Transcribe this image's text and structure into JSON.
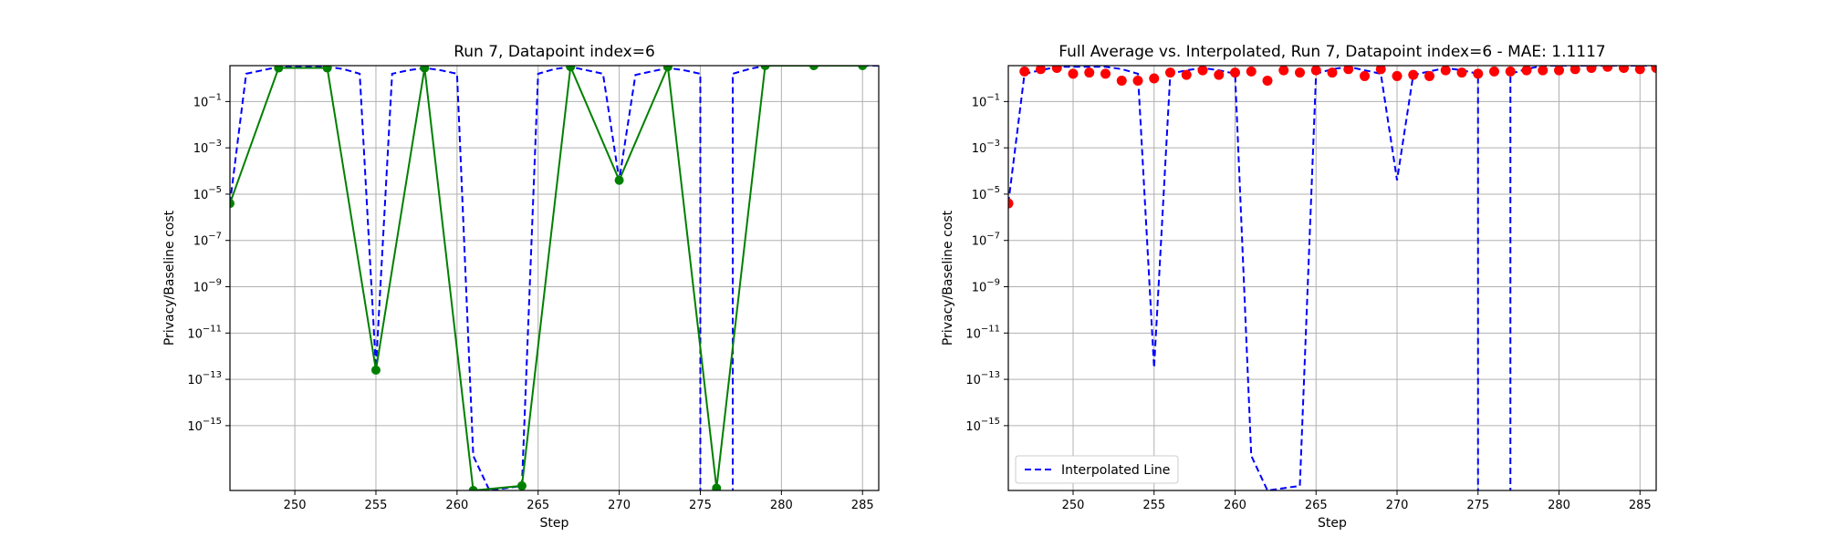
{
  "chart_data": [
    {
      "type": "line",
      "title": "Run 7, Datapoint index=6",
      "xlabel": "Step",
      "ylabel": "Privacy/Baseline cost",
      "xlim": [
        246,
        286
      ],
      "ylog_exponent_range": [
        -17.8,
        0.55
      ],
      "yscale": "log",
      "grid": true,
      "x_ticks": [
        "250",
        "255",
        "260",
        "265",
        "270",
        "275",
        "280",
        "285"
      ],
      "y_tick_exponents": [
        -1,
        -3,
        -5,
        -7,
        -9,
        -11,
        -13,
        -15
      ],
      "series": [
        {
          "style": "dashed",
          "color": "#0000ff",
          "points": [
            [
              246,
              -5.4
            ],
            [
              247,
              0.2
            ],
            [
              248,
              0.35
            ],
            [
              249,
              0.5
            ],
            [
              250,
              0.5
            ],
            [
              251,
              0.5
            ],
            [
              252,
              0.5
            ],
            [
              253,
              0.4
            ],
            [
              254,
              0.2
            ],
            [
              255,
              -12.5
            ],
            [
              256,
              0.2
            ],
            [
              257,
              0.35
            ],
            [
              258,
              0.45
            ],
            [
              259,
              0.35
            ],
            [
              260,
              0.2
            ],
            [
              261,
              -16.3
            ],
            [
              262,
              -17.8
            ],
            [
              263,
              -17.7
            ],
            [
              264,
              -17.6
            ],
            [
              265,
              0.2
            ],
            [
              266,
              0.4
            ],
            [
              267,
              0.5
            ],
            [
              268,
              0.35
            ],
            [
              269,
              0.2
            ],
            [
              270,
              -4.4
            ],
            [
              271,
              0.15
            ],
            [
              272,
              0.3
            ],
            [
              273,
              0.45
            ],
            [
              274,
              0.35
            ],
            [
              275,
              0.2
            ],
            [
              275,
              -18
            ],
            [
              277,
              -18
            ],
            [
              277,
              0.2
            ],
            [
              278,
              0.4
            ],
            [
              279,
              0.55
            ],
            [
              280,
              0.55
            ],
            [
              281,
              0.55
            ],
            [
              282,
              0.55
            ],
            [
              283,
              0.55
            ],
            [
              284,
              0.55
            ],
            [
              285,
              0.55
            ],
            [
              286,
              0.55
            ]
          ]
        },
        {
          "style": "solid-markers",
          "color": "#008000",
          "points": [
            [
              246,
              -5.4
            ],
            [
              249,
              0.45
            ],
            [
              252,
              0.45
            ],
            [
              255,
              -12.6
            ],
            [
              258,
              0.45
            ],
            [
              261,
              -17.8
            ],
            [
              264,
              -17.6
            ],
            [
              267,
              0.5
            ],
            [
              270,
              -4.4
            ],
            [
              273,
              0.5
            ],
            [
              276,
              -17.7
            ],
            [
              279,
              0.55
            ],
            [
              282,
              0.55
            ],
            [
              285,
              0.55
            ]
          ]
        }
      ]
    },
    {
      "type": "scatter",
      "title": "Full Average vs. Interpolated, Run 7, Datapoint index=6 - MAE: 1.1117",
      "xlabel": "Step",
      "ylabel": "Privacy/Baseline cost",
      "xlim": [
        246,
        286
      ],
      "ylog_exponent_range": [
        -17.8,
        0.55
      ],
      "yscale": "log",
      "grid": true,
      "legend": {
        "position": "lower-left",
        "entries": [
          "Interpolated Line"
        ]
      },
      "x_ticks": [
        "250",
        "255",
        "260",
        "265",
        "270",
        "275",
        "280",
        "285"
      ],
      "y_tick_exponents": [
        -1,
        -3,
        -5,
        -7,
        -9,
        -11,
        -13,
        -15
      ],
      "series": [
        {
          "name": "Interpolated Line",
          "style": "dashed",
          "color": "#0000ff",
          "points": [
            [
              246,
              -5.4
            ],
            [
              247,
              0.2
            ],
            [
              248,
              0.35
            ],
            [
              249,
              0.5
            ],
            [
              250,
              0.5
            ],
            [
              251,
              0.5
            ],
            [
              252,
              0.5
            ],
            [
              253,
              0.4
            ],
            [
              254,
              0.2
            ],
            [
              255,
              -12.5
            ],
            [
              256,
              0.2
            ],
            [
              257,
              0.35
            ],
            [
              258,
              0.45
            ],
            [
              259,
              0.35
            ],
            [
              260,
              0.2
            ],
            [
              261,
              -16.3
            ],
            [
              262,
              -17.8
            ],
            [
              263,
              -17.7
            ],
            [
              264,
              -17.6
            ],
            [
              265,
              0.2
            ],
            [
              266,
              0.4
            ],
            [
              267,
              0.5
            ],
            [
              268,
              0.35
            ],
            [
              269,
              0.2
            ],
            [
              270,
              -4.4
            ],
            [
              271,
              0.15
            ],
            [
              272,
              0.3
            ],
            [
              273,
              0.45
            ],
            [
              274,
              0.35
            ],
            [
              275,
              0.2
            ],
            [
              275,
              -18
            ],
            [
              277,
              -18
            ],
            [
              277,
              0.2
            ],
            [
              278,
              0.4
            ],
            [
              279,
              0.55
            ],
            [
              280,
              0.55
            ],
            [
              281,
              0.55
            ],
            [
              282,
              0.55
            ],
            [
              283,
              0.55
            ],
            [
              284,
              0.55
            ],
            [
              285,
              0.55
            ],
            [
              286,
              0.55
            ]
          ]
        },
        {
          "style": "markers",
          "color": "#ff0000",
          "points": [
            [
              246,
              -5.4
            ],
            [
              247,
              0.3
            ],
            [
              248,
              0.4
            ],
            [
              249,
              0.45
            ],
            [
              250,
              0.2
            ],
            [
              251,
              0.25
            ],
            [
              252,
              0.2
            ],
            [
              253,
              -0.1
            ],
            [
              254,
              -0.1
            ],
            [
              255,
              0.0
            ],
            [
              256,
              0.25
            ],
            [
              257,
              0.15
            ],
            [
              258,
              0.35
            ],
            [
              259,
              0.15
            ],
            [
              260,
              0.25
            ],
            [
              261,
              0.3
            ],
            [
              262,
              -0.1
            ],
            [
              263,
              0.35
            ],
            [
              264,
              0.25
            ],
            [
              265,
              0.35
            ],
            [
              266,
              0.25
            ],
            [
              267,
              0.4
            ],
            [
              268,
              0.1
            ],
            [
              269,
              0.4
            ],
            [
              270,
              0.1
            ],
            [
              271,
              0.15
            ],
            [
              272,
              0.1
            ],
            [
              273,
              0.35
            ],
            [
              274,
              0.25
            ],
            [
              275,
              0.2
            ],
            [
              276,
              0.3
            ],
            [
              277,
              0.3
            ],
            [
              278,
              0.35
            ],
            [
              279,
              0.35
            ],
            [
              280,
              0.35
            ],
            [
              281,
              0.4
            ],
            [
              282,
              0.45
            ],
            [
              283,
              0.5
            ],
            [
              284,
              0.45
            ],
            [
              285,
              0.4
            ],
            [
              286,
              0.45
            ]
          ]
        }
      ]
    }
  ]
}
